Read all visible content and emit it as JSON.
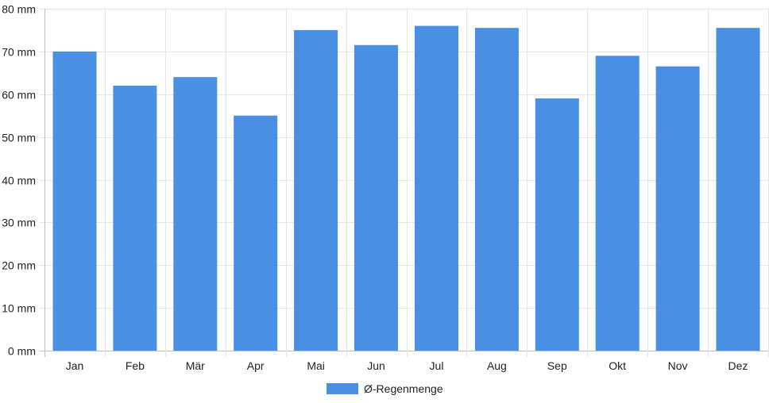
{
  "chart_data": {
    "type": "bar",
    "categories": [
      "Jan",
      "Feb",
      "Mär",
      "Apr",
      "Mai",
      "Jun",
      "Jul",
      "Aug",
      "Sep",
      "Okt",
      "Nov",
      "Dez"
    ],
    "series": [
      {
        "name": "Ø-Regenmenge",
        "values": [
          70,
          62,
          64,
          55,
          75,
          71.5,
          76,
          75.5,
          59,
          69,
          66.5,
          75.5
        ],
        "color": "#4a90e2"
      }
    ],
    "ylim": [
      0,
      80
    ],
    "yticks": [
      0,
      10,
      20,
      30,
      40,
      50,
      60,
      70,
      80
    ],
    "ytick_labels": [
      "0 mm",
      "10 mm",
      "20 mm",
      "30 mm",
      "40 mm",
      "50 mm",
      "60 mm",
      "70 mm",
      "80 mm"
    ],
    "grid": true,
    "legend_position": "bottom"
  }
}
